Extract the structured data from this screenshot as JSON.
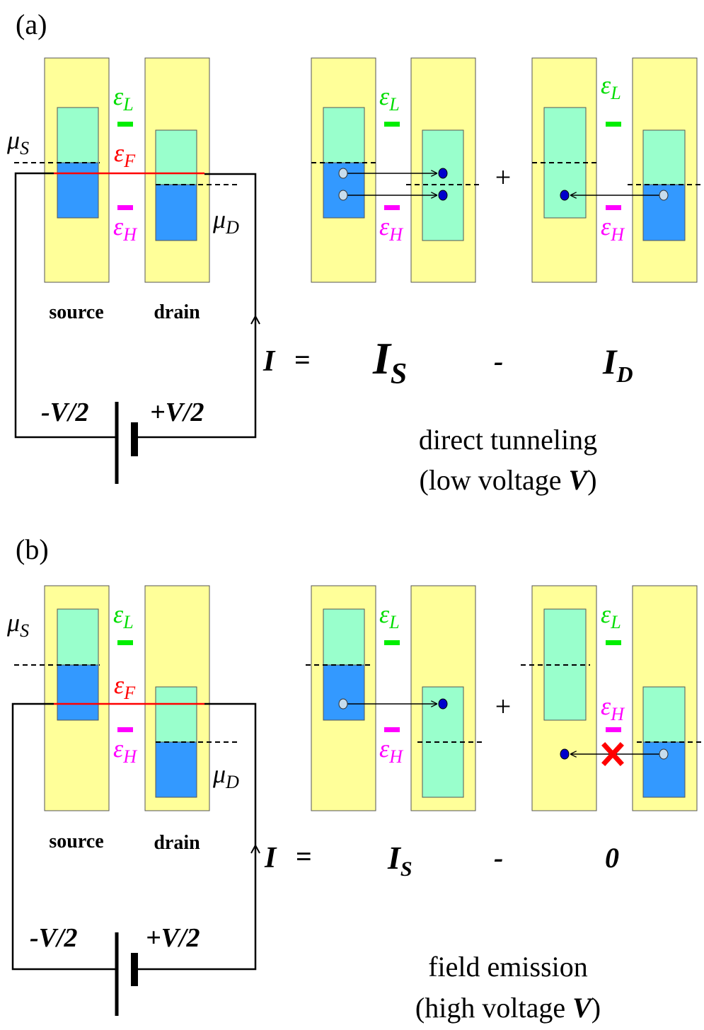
{
  "panels": [
    {
      "id": "a",
      "label": "(a)",
      "symbols": {
        "mu": "μ",
        "mu_s_sub": "S",
        "mu_d_sub": "D",
        "eps": "ε",
        "eps_l_sub": "L",
        "eps_h_sub": "H",
        "eps_f_sub": "F"
      },
      "electrode_labels": {
        "source": "source",
        "drain": "drain"
      },
      "battery": {
        "left": "-V/2",
        "right": "+V/2"
      },
      "equation": {
        "lhs": "I",
        "eq": "=",
        "term1": "I",
        "term1_sub": "S",
        "minus": "-",
        "term2": "I",
        "term2_sub": "D",
        "plus": "+"
      },
      "caption": {
        "line1": "direct tunneling",
        "line2_prefix": "(low voltage ",
        "line2_var": "V",
        "line2_suffix": ")"
      }
    },
    {
      "id": "b",
      "label": "(b)",
      "symbols": {
        "mu": "μ",
        "mu_s_sub": "S",
        "mu_d_sub": "D",
        "eps": "ε",
        "eps_l_sub": "L",
        "eps_h_sub": "H",
        "eps_f_sub": "F"
      },
      "electrode_labels": {
        "source": "source",
        "drain": "drain"
      },
      "battery": {
        "left": "-V/2",
        "right": "+V/2"
      },
      "equation": {
        "lhs": "I",
        "eq": "=",
        "term1": "I",
        "term1_sub": "S",
        "minus": "-",
        "term2": "0",
        "plus": "+"
      },
      "caption": {
        "line1": "field emission",
        "line2_prefix": "(high voltage ",
        "line2_var": "V",
        "line2_suffix": ")"
      }
    }
  ],
  "colors": {
    "electrode": "#ffff99",
    "empty_band": "#99ffcc",
    "filled_band": "#3399ff",
    "lumo": "#00ee00",
    "homo": "#ff00ff",
    "fermi": "#ff0000",
    "hole_dot": "#c7dcec",
    "electron_dot": "#0000cc",
    "blocked_mark": "#ff0000",
    "line": "#000000"
  }
}
